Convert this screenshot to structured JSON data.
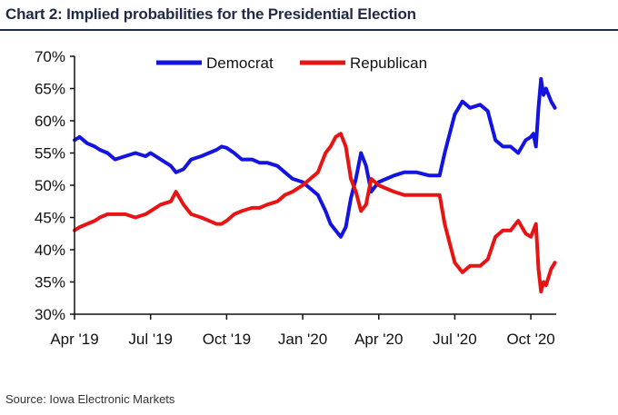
{
  "header": {
    "title": "Chart 2: Implied probabilities for the Presidential Election"
  },
  "footer": {
    "source": "Source: Iowa Electronic Markets"
  },
  "colors": {
    "democrat": "#1414e0",
    "republican": "#e81414",
    "axis": "#111111",
    "title": "#1f2a44"
  },
  "chart_data": {
    "type": "line",
    "title": "Chart 2: Implied probabilities for the Presidential Election",
    "xlabel": "",
    "ylabel": "",
    "ylim": [
      30,
      70
    ],
    "xlim": [
      0,
      19.0
    ],
    "x_unit": "months since Apr 2019",
    "yticks": [
      "30%",
      "35%",
      "40%",
      "45%",
      "50%",
      "55%",
      "60%",
      "65%",
      "70%"
    ],
    "xticks": [
      {
        "label": "Apr '19",
        "x": 0
      },
      {
        "label": "Jul '19",
        "x": 3
      },
      {
        "label": "Oct '19",
        "x": 6
      },
      {
        "label": "Jan '20",
        "x": 9
      },
      {
        "label": "Apr '20",
        "x": 12
      },
      {
        "label": "Jul '20",
        "x": 15
      },
      {
        "label": "Oct '20",
        "x": 18
      }
    ],
    "legend": [
      "Democrat",
      "Republican"
    ],
    "legend_position": "top-center",
    "series": [
      {
        "name": "Democrat",
        "x": [
          0,
          0.2,
          0.5,
          0.8,
          1.0,
          1.3,
          1.6,
          2.0,
          2.4,
          2.8,
          3.0,
          3.4,
          3.8,
          4.0,
          4.3,
          4.6,
          5.0,
          5.3,
          5.6,
          5.8,
          6.0,
          6.3,
          6.6,
          7.0,
          7.3,
          7.6,
          8.0,
          8.3,
          8.6,
          9.0,
          9.3,
          9.6,
          9.9,
          10.1,
          10.3,
          10.5,
          10.7,
          10.9,
          11.1,
          11.3,
          11.5,
          11.7,
          12.0,
          12.3,
          12.6,
          13.0,
          13.5,
          14.0,
          14.4,
          14.6,
          14.8,
          15.0,
          15.3,
          15.6,
          16.0,
          16.3,
          16.6,
          16.9,
          17.2,
          17.5,
          17.8,
          18.0,
          18.1,
          18.2,
          18.3,
          18.4,
          18.5,
          18.6,
          18.8,
          18.95
        ],
        "values": [
          57,
          57.5,
          56.5,
          56,
          55.5,
          55,
          54,
          54.5,
          55,
          54.5,
          55,
          54,
          53,
          52,
          52.5,
          54,
          54.5,
          55,
          55.5,
          56,
          55.8,
          55,
          54,
          54,
          53.5,
          53.5,
          53,
          52,
          51,
          50.5,
          49.5,
          48.5,
          46,
          44,
          43,
          42,
          43.5,
          48,
          51,
          55,
          53,
          49,
          50.5,
          51,
          51.5,
          52,
          52,
          51.5,
          51.5,
          55,
          58,
          61,
          63,
          62,
          62.5,
          61.5,
          57,
          56,
          56,
          55,
          57,
          57.5,
          58,
          56,
          62,
          66.5,
          64,
          65,
          63,
          62
        ]
      },
      {
        "name": "Republican",
        "x": [
          0,
          0.2,
          0.5,
          0.8,
          1.0,
          1.3,
          1.6,
          2.0,
          2.4,
          2.8,
          3.0,
          3.4,
          3.8,
          4.0,
          4.3,
          4.6,
          5.0,
          5.3,
          5.6,
          5.8,
          6.0,
          6.3,
          6.6,
          7.0,
          7.3,
          7.6,
          8.0,
          8.3,
          8.6,
          9.0,
          9.3,
          9.6,
          9.9,
          10.1,
          10.3,
          10.5,
          10.7,
          10.9,
          11.1,
          11.3,
          11.5,
          11.7,
          12.0,
          12.3,
          12.6,
          13.0,
          13.5,
          14.0,
          14.4,
          14.6,
          14.8,
          15.0,
          15.3,
          15.6,
          16.0,
          16.3,
          16.6,
          16.9,
          17.2,
          17.5,
          17.8,
          18.0,
          18.1,
          18.2,
          18.3,
          18.4,
          18.5,
          18.6,
          18.8,
          18.95
        ],
        "values": [
          43,
          43.5,
          44,
          44.5,
          45,
          45.5,
          45.5,
          45.5,
          45,
          45.5,
          46,
          47,
          47.5,
          49,
          47,
          45.5,
          45,
          44.5,
          44,
          44,
          44.5,
          45.5,
          46,
          46.5,
          46.5,
          47,
          47.5,
          48.5,
          49,
          50,
          51,
          52,
          55,
          56,
          57.5,
          58,
          56,
          51,
          49,
          46,
          47,
          51,
          50,
          49.5,
          49,
          48.5,
          48.5,
          48.5,
          48.5,
          44,
          41,
          38,
          36.5,
          37.5,
          37.5,
          38.5,
          42,
          43,
          43,
          44.5,
          42.5,
          42,
          43,
          44,
          37,
          33.5,
          35,
          34.5,
          37,
          38
        ]
      }
    ]
  }
}
